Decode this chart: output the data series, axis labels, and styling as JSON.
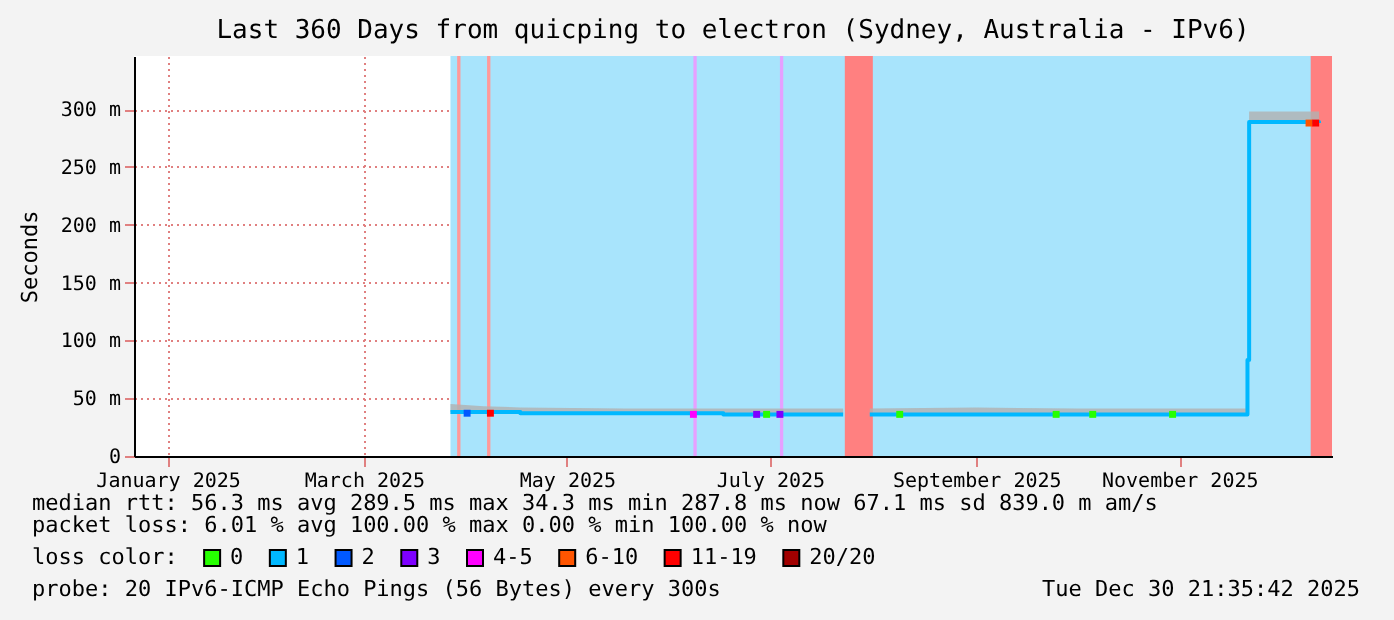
{
  "chart_data": {
    "type": "line",
    "title": "Last 360 Days from quicping to electron (Sydney, Australia - IPv6)",
    "ylabel": "Seconds",
    "legend_title": "loss color:",
    "legend": "bottom",
    "xlim": [
      "2025-01-04T21:35",
      "2025-12-30T21:35"
    ],
    "xticks": [
      {
        "value": "2025-01-15",
        "label": "January 2025"
      },
      {
        "value": "2025-03-15",
        "label": "March 2025"
      },
      {
        "value": "2025-05-15",
        "label": "May 2025"
      },
      {
        "value": "2025-07-15",
        "label": "July 2025"
      },
      {
        "value": "2025-09-15",
        "label": "September 2025"
      },
      {
        "value": "2025-11-15",
        "label": "November 2025"
      }
    ],
    "ylim": [
      0,
      346
    ],
    "yticks": [
      {
        "value": 0,
        "label": "0"
      },
      {
        "value": 50,
        "label": "50 m"
      },
      {
        "value": 100,
        "label": "100 m"
      },
      {
        "value": 150,
        "label": "150 m"
      },
      {
        "value": 200,
        "label": "200 m"
      },
      {
        "value": 250,
        "label": "250 m"
      },
      {
        "value": 300,
        "label": "300 m"
      }
    ],
    "grid": true,
    "bands": [
      {
        "axis": "x",
        "from": "2025-04-10",
        "to": "2025-12-30T21:35",
        "color": "#a8e4fc"
      },
      {
        "axis": "x",
        "from": "2025-04-12",
        "to": "2025-04-13",
        "color": "#ff9a9a"
      },
      {
        "axis": "x",
        "from": "2025-04-21",
        "to": "2025-04-22",
        "color": "#ff9a9a"
      },
      {
        "axis": "x",
        "from": "2025-06-22",
        "to": "2025-06-23",
        "color": "#e6a0ff"
      },
      {
        "axis": "x",
        "from": "2025-07-18",
        "to": "2025-07-19",
        "color": "#e6a0ff"
      },
      {
        "axis": "x",
        "from": "2025-08-06T12:00",
        "to": "2025-08-14T22:00",
        "color": "#ff8080"
      },
      {
        "axis": "x",
        "from": "2025-12-24T12:00",
        "to": "2025-12-30T21:35",
        "color": "#ff8080"
      }
    ],
    "series": [
      {
        "name": "0",
        "color": "#26ff00",
        "type": "scatter",
        "marker": "square",
        "x": [
          "2025-07-14",
          "2025-08-23",
          "2025-10-09",
          "2025-10-20",
          "2025-11-13"
        ],
        "values": [
          36,
          36,
          36,
          36,
          36
        ]
      },
      {
        "name": "1",
        "color": "#00b8ff",
        "x": [
          "2025-04-10",
          "2025-04-20",
          "2025-05-01",
          "2025-06-01",
          "2025-07-01",
          "2025-08-06",
          "2025-08-10",
          "2025-08-14",
          "2025-09-15",
          "2025-10-15",
          "2025-11-15",
          "2025-12-05",
          "2025-12-05T12:00",
          "2025-12-06",
          "2025-12-27"
        ],
        "values": [
          38,
          38,
          37,
          37,
          36,
          36,
          null,
          36,
          36,
          36,
          36,
          36,
          83,
          289,
          288
        ],
        "lower": [
          38,
          38,
          37,
          37,
          36,
          36,
          null,
          36,
          36,
          36,
          36,
          36,
          83,
          289,
          288
        ],
        "upper": [
          45,
          43,
          42,
          41,
          41,
          41,
          null,
          41,
          42,
          41,
          41,
          41,
          83,
          298,
          298
        ]
      },
      {
        "name": "2",
        "color": "#0059ff",
        "type": "scatter",
        "marker": "square",
        "x": [
          "2025-04-15"
        ],
        "values": [
          37
        ]
      },
      {
        "name": "3",
        "color": "#7e00ff",
        "type": "scatter",
        "marker": "square",
        "x": [
          "2025-07-11",
          "2025-07-18"
        ],
        "values": [
          36,
          36
        ]
      },
      {
        "name": "4-5",
        "color": "#ff00ff",
        "type": "scatter",
        "marker": "square",
        "x": [
          "2025-06-22"
        ],
        "values": [
          36
        ]
      },
      {
        "name": "6-10",
        "color": "#ff5500",
        "type": "scatter",
        "marker": "square",
        "x": [
          "2025-12-24"
        ],
        "values": [
          288
        ]
      },
      {
        "name": "11-19",
        "color": "#ff0000",
        "type": "scatter",
        "marker": "square",
        "x": [
          "2025-04-22",
          "2025-12-26"
        ],
        "values": [
          37,
          288
        ]
      },
      {
        "name": "20/20",
        "color": "#a10000",
        "type": "scatter"
      }
    ],
    "annotations": [
      "median rtt:  56.3 ms avg  289.5 ms max  34.3 ms min  287.8 ms now  67.1 ms sd  839.0 m am/s",
      "packet loss: 6.01 % avg  100.00 % max  0.00 % min  100.00 % now",
      "probe:       20 IPv6-ICMP Echo Pings (56 Bytes) every 300s",
      "Tue Dec 30 21:35:42 2025"
    ]
  }
}
